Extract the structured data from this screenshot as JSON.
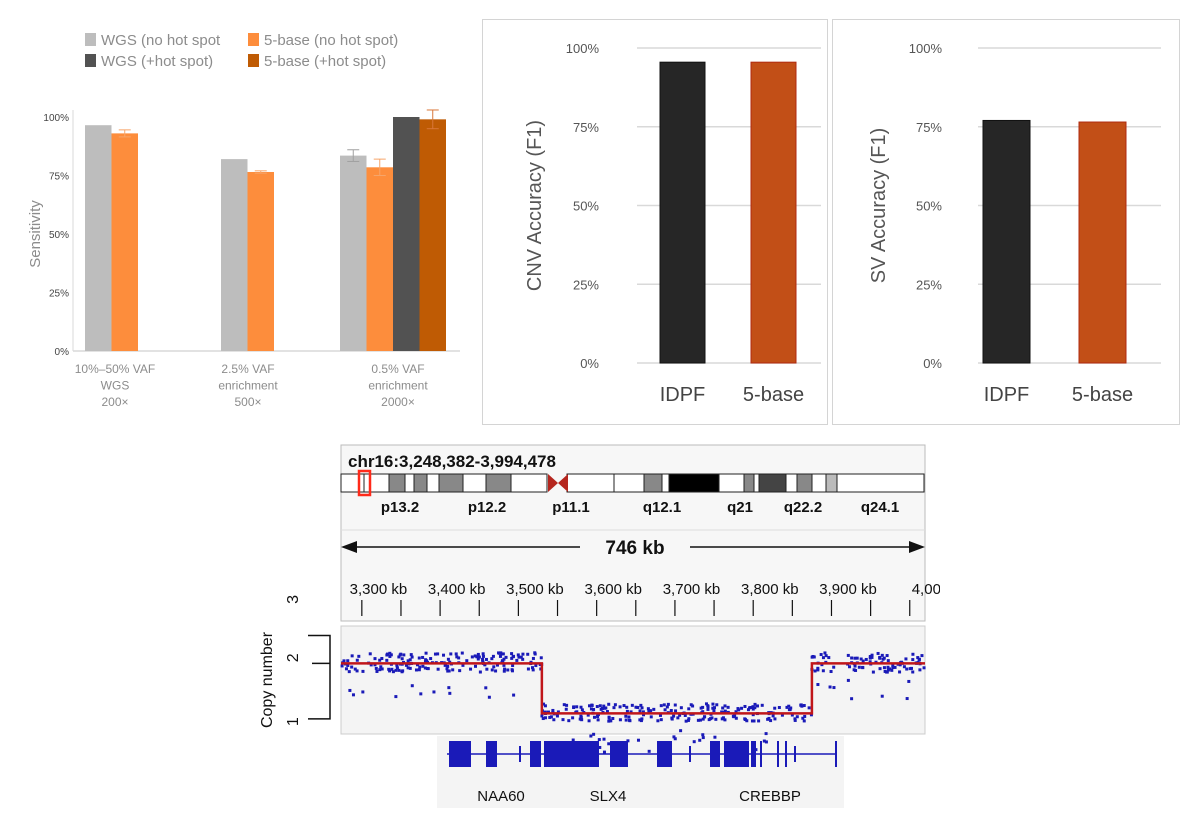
{
  "chart_data": [
    {
      "id": "sensitivity",
      "type": "bar",
      "title": "",
      "xlabel": "",
      "ylabel": "Sensitivity",
      "ylim": [
        0,
        1
      ],
      "yticks": [
        "0%",
        "25%",
        "50%",
        "75%",
        "100%"
      ],
      "grid": false,
      "legend_position": "top",
      "categories": [
        [
          "10%–50% VAF",
          "WGS",
          "200×"
        ],
        [
          "2.5% VAF",
          "enrichment",
          "500×"
        ],
        [
          "0.5% VAF",
          "enrichment",
          "2000×"
        ]
      ],
      "series": [
        {
          "name": "WGS (no hot spot",
          "color": "#bdbdbd",
          "values": [
            0.965,
            0.82,
            0.835
          ],
          "error": [
            0,
            0,
            0.025
          ]
        },
        {
          "name": "5-base (no hot spot)",
          "color": "#fd8d3c",
          "values": [
            0.93,
            0.765,
            0.785
          ],
          "error": [
            0.015,
            0.005,
            0.035
          ]
        },
        {
          "name": "WGS (+hot spot)",
          "color": "#525252",
          "values": [
            null,
            null,
            1.0
          ],
          "error": [
            0,
            0,
            0
          ]
        },
        {
          "name": "5-base (+hot spot)",
          "color": "#bf5b04",
          "values": [
            null,
            null,
            0.99
          ],
          "error": [
            0,
            0,
            0.04
          ]
        }
      ]
    },
    {
      "id": "cnv",
      "type": "bar",
      "ylabel": "CNV Accuracy (F1)",
      "ylim": [
        0,
        1
      ],
      "yticks": [
        "0%",
        "25%",
        "50%",
        "75%",
        "100%"
      ],
      "grid": true,
      "categories": [
        "IDPF",
        "5-base"
      ],
      "values": [
        0.955,
        0.955
      ],
      "colors": [
        "#262626",
        "#c24f17"
      ]
    },
    {
      "id": "sv",
      "type": "bar",
      "ylabel": "SV Accuracy (F1)",
      "ylim": [
        0,
        1
      ],
      "yticks": [
        "0%",
        "25%",
        "50%",
        "75%",
        "100%"
      ],
      "grid": true,
      "categories": [
        "IDPF",
        "5-base"
      ],
      "values": [
        0.77,
        0.765
      ],
      "colors": [
        "#262626",
        "#c24f17"
      ]
    },
    {
      "id": "copy-number",
      "type": "scatter",
      "locus": "chr16:3,248,382-3,994,478",
      "span_label": "746 kb",
      "xlim_kb": [
        3248.382,
        3994.478
      ],
      "xticks": [
        "3,300 kb",
        "3,400 kb",
        "3,500 kb",
        "3,600 kb",
        "3,700 kb",
        "3,800 kb",
        "3,900 kb",
        "4,00"
      ],
      "xtick_values_kb": [
        3300,
        3400,
        3500,
        3600,
        3700,
        3800,
        3900,
        4000
      ],
      "ylabel": "Copy number",
      "yticks": [
        "1",
        "2",
        "3"
      ],
      "ylim": [
        0.8,
        2.6
      ],
      "segments": [
        {
          "start_kb": 3248.382,
          "end_kb": 3505,
          "copy_number": 2.0
        },
        {
          "start_kb": 3505,
          "end_kb": 3850,
          "copy_number": 1.1
        },
        {
          "start_kb": 3850,
          "end_kb": 3994.478,
          "copy_number": 2.0
        }
      ],
      "segment_color": "#c0161a",
      "point_color": "#1a1ab8",
      "cytobands": [
        "p13.2",
        "p12.2",
        "p11.1",
        "q12.1",
        "q21",
        "q22.2",
        "q24.1"
      ],
      "genes": [
        "NAA60",
        "SLX4",
        "CREBBP"
      ]
    }
  ]
}
